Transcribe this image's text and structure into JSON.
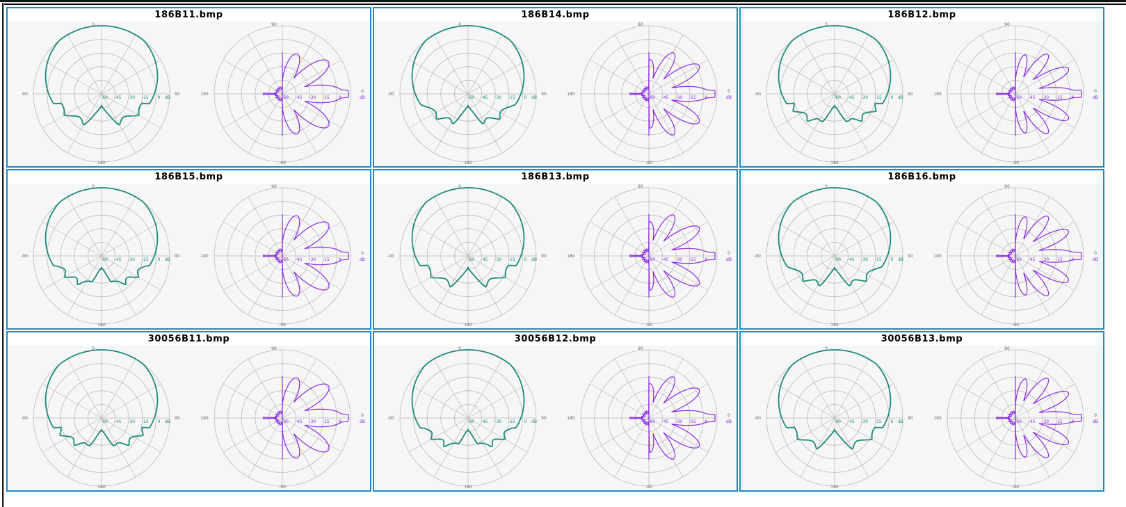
{
  "files": [
    "186B11.bmp",
    "186B14.bmp",
    "186B12.bmp",
    "186B15.bmp",
    "186B13.bmp",
    "186B16.bmp",
    "30056B11.bmp",
    "30056B12.bmp",
    "30056B13.bmp"
  ],
  "plot_labels": {
    "left_top": "0",
    "left_left": "-90",
    "left_right": "90",
    "left_bottom": "180",
    "right_top": "90",
    "right_left": "180",
    "right_right": "0",
    "right_bottom": "-90",
    "ring_labels": [
      "-60",
      "-45",
      "-30",
      "-15",
      "0"
    ],
    "unit": "dB"
  },
  "colors": {
    "cell_border": "#1f88c8",
    "green_trace": "#1d8a78",
    "purple_trace": "#8a2be2",
    "grid": "#b9b9b9"
  }
}
